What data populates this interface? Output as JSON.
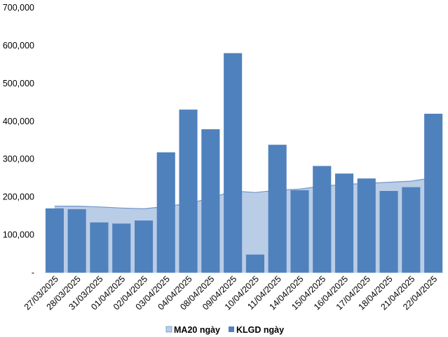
{
  "chart_data": {
    "type": "bar",
    "categories": [
      "27/03/2025",
      "28/03/2025",
      "31/03/2025",
      "01/04/2025",
      "02/04/2025",
      "03/04/2025",
      "04/04/2025",
      "08/04/2025",
      "09/04/2025",
      "10/04/2025",
      "11/04/2025",
      "14/04/2025",
      "15/04/2025",
      "16/04/2025",
      "17/04/2025",
      "18/04/2025",
      "21/04/2025",
      "22/04/2025"
    ],
    "series": [
      {
        "name": "MA20 ngày",
        "kind": "area",
        "color": "#bacde6",
        "line_color": "#6f96c8",
        "values": [
          176000,
          176000,
          174000,
          171000,
          169000,
          175000,
          183000,
          197000,
          216000,
          212000,
          218000,
          221000,
          229000,
          233000,
          236000,
          239000,
          242000,
          251000
        ]
      },
      {
        "name": "KLGD ngày",
        "kind": "bar",
        "color": "#4f81bd",
        "values": [
          170000,
          168000,
          133000,
          130000,
          138000,
          318000,
          431000,
          379000,
          580000,
          48000,
          338000,
          218000,
          282000,
          262000,
          249000,
          216000,
          226000,
          420000
        ]
      }
    ],
    "y_ticks": [
      "-",
      "100,000",
      "200,000",
      "300,000",
      "400,000",
      "500,000",
      "600,000",
      "700,000"
    ],
    "ylim": [
      0,
      700000
    ],
    "grid": false,
    "legend_position": "bottom"
  }
}
